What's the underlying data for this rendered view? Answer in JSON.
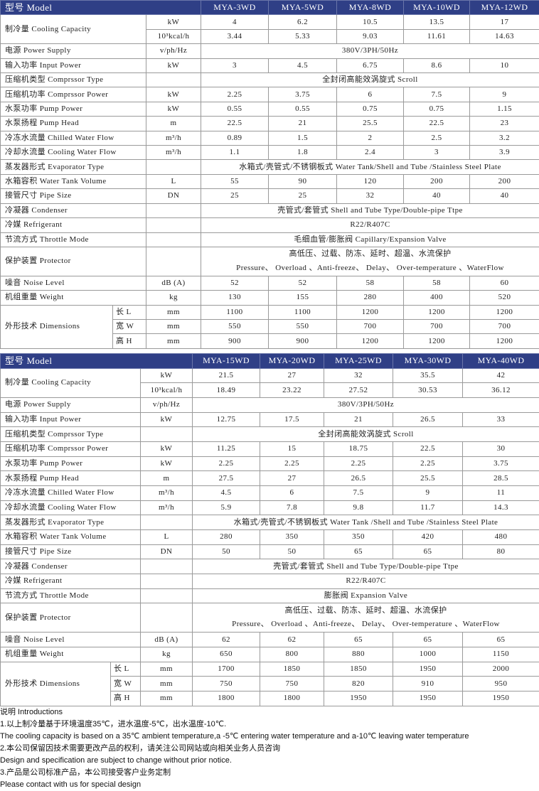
{
  "tables": [
    {
      "header": {
        "label": "型号 Model",
        "models": [
          "MYA-3WD",
          "MYA-5WD",
          "MYA-8WD",
          "MYA-10WD",
          "MYA-12WD"
        ]
      },
      "rows": [
        {
          "label": "制冷量 Cooling Capacity",
          "sub": [
            {
              "unit": "kW",
              "values": [
                4,
                6.2,
                10.5,
                13.5,
                17
              ]
            },
            {
              "unit": "10³kcal/h",
              "values": [
                3.44,
                5.33,
                9.03,
                11.61,
                14.63
              ]
            }
          ]
        },
        {
          "label": "电源 Power Supply",
          "unit": "v/ph/Hz",
          "text": "380V/3PH/50Hz"
        },
        {
          "label": "输入功率 Input Power",
          "unit": "kW",
          "values": [
            3,
            4.5,
            6.75,
            8.6,
            10
          ]
        },
        {
          "label": "压缩机类型 Comprssor Type",
          "text": "全封闭高能效涡旋式 Scroll"
        },
        {
          "label": "压缩机功率 Comprssor Power",
          "unit": "kW",
          "values": [
            2.25,
            3.75,
            6,
            7.5,
            9
          ]
        },
        {
          "label": "水泵功率 Pump Power",
          "unit": "kW",
          "values": [
            0.55,
            0.55,
            0.75,
            0.75,
            1.15
          ]
        },
        {
          "label": "水泵扬程 Pump Head",
          "unit": "m",
          "values": [
            22.5,
            21,
            25.5,
            22.5,
            23
          ]
        },
        {
          "label": "冷冻水流量 Chilled Water Flow",
          "unit": "m³/h",
          "values": [
            0.89,
            1.5,
            2,
            2.5,
            3.2
          ]
        },
        {
          "label": "冷却水流量 Cooling Water Flow",
          "unit": "m³/h",
          "values": [
            1.1,
            1.8,
            2.4,
            3,
            3.9
          ]
        },
        {
          "label": "蒸发器形式 Evaporator Type",
          "text": "水箱式/壳管式/不锈钢板式 Water Tank/Shell and Tube /Stainless Steel Plate"
        },
        {
          "label": "水箱容积 Water Tank Volume",
          "unit": "L",
          "values": [
            55,
            90,
            120,
            200,
            200
          ]
        },
        {
          "label": "接管尺寸 Pipe Size",
          "unit": "DN",
          "values": [
            25,
            25,
            32,
            40,
            40
          ]
        },
        {
          "label": "冷凝器 Condenser",
          "text": "壳管式/套管式 Shell and Tube Type/Double-pipe Ttpe"
        },
        {
          "label": "冷媒 Refrigerant",
          "text": "R22/R407C"
        },
        {
          "label": "节流方式 Throttle Mode",
          "text": "毛细血管/膨胀阀 Capillary/Expansion Valve"
        },
        {
          "label": "保护装置 Protector",
          "lines": [
            "高低压、过载、防冻、延时、超温、水流保护",
            "Pressure、 Overload 、Anti-freeze、 Delay、 Over-temperature 、WaterFlow"
          ]
        },
        {
          "label": "噪音 Noise Level",
          "unit": "dB (A)",
          "values": [
            52,
            52,
            58,
            58,
            60
          ]
        },
        {
          "label": "机组重量 Weight",
          "unit": "kg",
          "values": [
            130,
            155,
            280,
            400,
            520
          ]
        },
        {
          "label": "外形技术 Dimensions",
          "sub": [
            {
              "name": "长 L",
              "unit": "mm",
              "values": [
                1100,
                1100,
                1200,
                1200,
                1200
              ]
            },
            {
              "name": "宽 W",
              "unit": "mm",
              "values": [
                550,
                550,
                700,
                700,
                700
              ]
            },
            {
              "name": "高 H",
              "unit": "mm",
              "values": [
                900,
                900,
                1200,
                1200,
                1200
              ]
            }
          ]
        }
      ]
    },
    {
      "header": {
        "label": "型号 Model",
        "models": [
          "MYA-15WD",
          "MYA-20WD",
          "MYA-25WD",
          "MYA-30WD",
          "MYA-40WD"
        ]
      },
      "rows": [
        {
          "label": "制冷量 Cooling Capacity",
          "sub": [
            {
              "unit": "kW",
              "values": [
                21.5,
                27,
                32,
                35.5,
                42
              ]
            },
            {
              "unit": "10³kcal/h",
              "values": [
                18.49,
                23.22,
                27.52,
                30.53,
                36.12
              ]
            }
          ]
        },
        {
          "label": "电源 Power Supply",
          "unit": "v/ph/Hz",
          "text": "380V/3PH/50Hz"
        },
        {
          "label": "输入功率 Input Power",
          "unit": "kW",
          "values": [
            12.75,
            17.5,
            21,
            26.5,
            33
          ]
        },
        {
          "label": "压缩机类型 Comprssor Type",
          "text": "全封闭高能效涡旋式 Scroll"
        },
        {
          "label": "压缩机功率 Comprssor Power",
          "unit": "kW",
          "values": [
            11.25,
            15,
            18.75,
            22.5,
            30
          ]
        },
        {
          "label": "水泵功率 Pump Power",
          "unit": "kW",
          "values": [
            2.25,
            2.25,
            2.25,
            2.25,
            3.75
          ]
        },
        {
          "label": "水泵扬程 Pump Head",
          "unit": "m",
          "values": [
            27.5,
            27,
            26.5,
            25.5,
            28.5
          ]
        },
        {
          "label": "冷冻水流量 Chilled Water Flow",
          "unit": "m³/h",
          "values": [
            4.5,
            6,
            7.5,
            9,
            11
          ]
        },
        {
          "label": "冷却水流量 Cooling Water Flow",
          "unit": "m³/h",
          "values": [
            5.9,
            7.8,
            9.8,
            11.7,
            14.3
          ]
        },
        {
          "label": "蒸发器形式 Evaporator Type",
          "text": "水箱式/壳管式/不锈钢板式  Water Tank  /Shell and Tube /Stainless Steel Plate"
        },
        {
          "label": "水箱容积 Water Tank Volume",
          "unit": "L",
          "values": [
            280,
            350,
            350,
            420,
            480
          ]
        },
        {
          "label": "接管尺寸 Pipe Size",
          "unit": "DN",
          "values": [
            50,
            50,
            65,
            65,
            80
          ]
        },
        {
          "label": "冷凝器 Condenser",
          "text": "壳管式/套管式 Shell and Tube Type/Double-pipe Ttpe"
        },
        {
          "label": "冷媒 Refrigerant",
          "text": "R22/R407C"
        },
        {
          "label": "节流方式 Throttle Mode",
          "text": "膨胀阀 Expansion Valve"
        },
        {
          "label": "保护装置 Protector",
          "lines": [
            "高低压、过载、防冻、延时、超温、水流保护",
            "Pressure、 Overload 、Anti-freeze、 Delay、 Over-temperature 、WaterFlow"
          ]
        },
        {
          "label": "噪音 Noise Level",
          "unit": "dB (A)",
          "values": [
            62,
            62,
            65,
            65,
            65
          ]
        },
        {
          "label": "机组重量 Weight",
          "unit": "kg",
          "values": [
            650,
            800,
            880,
            1000,
            1150
          ]
        },
        {
          "label": "外形技术 Dimensions",
          "sub": [
            {
              "name": "长 L",
              "unit": "mm",
              "values": [
                1700,
                1850,
                1850,
                1950,
                2000
              ]
            },
            {
              "name": "宽 W",
              "unit": "mm",
              "values": [
                750,
                750,
                820,
                910,
                950
              ]
            },
            {
              "name": "高 H",
              "unit": "mm",
              "values": [
                1800,
                1800,
                1950,
                1950,
                1950
              ]
            }
          ]
        }
      ]
    }
  ],
  "notes": {
    "title": "说明 Introductions",
    "lines": [
      "1.以上制冷量基于环境温度35℃，进水温度-5℃，出水温度-10℃.",
      "The cooling capacity is based on a 35℃ ambient temperature,a -5℃ entering water temperature and a-10℃ leaving water temperature",
      "2.本公司保留因技术需要更改产品的权利，请关注公司网站或向相关业务人员咨询",
      "Design and specification are subject to change without prior notice.",
      "3.产品是公司标准产品，本公司接受客户业务定制",
      "Please contact with us for special design"
    ]
  }
}
